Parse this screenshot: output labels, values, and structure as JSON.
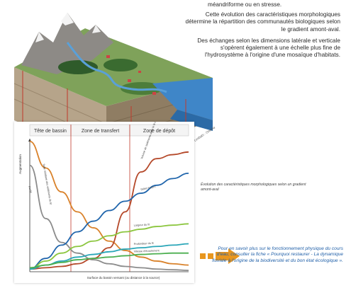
{
  "intro": "méandriforme ou en stresse.",
  "paragraph1": "Cette évolution des caractéristiques morphologiques détermine la répartition des communautés biologiques selon le gradient amont-aval.",
  "paragraph2": "Des échanges selon les dimensions latérale et verticale s'opèrent également à une échelle plus fine de l'hydrosystème à l'origine d'une mosaïque d'habitats.",
  "credit": "C. Lesbats - Onema",
  "caption": "Évolution des caractéristiques morphologiques selon un gradient amont-aval",
  "link_text": "Pour en savoir plus sur le fonctionnement physique du cours d'eau, consulter la fiche « Pourquoi restaurer - La dynamique fluviale à l'origine de la biodiversité et du bon état écologique ».",
  "colors": {
    "arrow": "#e8961e",
    "link": "#1f5fa8",
    "zone_line": "#c0392b"
  },
  "chart_data": {
    "type": "line",
    "zones": [
      "Tête de bassin",
      "Zone de transfert",
      "Zone de dépôt"
    ],
    "ylabel": "Augmentation",
    "xlabel": "Surface du bassin versant (ou distance à la source)",
    "x": [
      0,
      10,
      20,
      30,
      40,
      50,
      60,
      70,
      80,
      90,
      100
    ],
    "ylim": [
      0,
      100
    ],
    "series": [
      {
        "name": "Taille médiane des sédiments du lit",
        "color": "#d9822b",
        "values": [
          98,
          78,
          60,
          45,
          33,
          23,
          16,
          11,
          8,
          6,
          5
        ]
      },
      {
        "name": "Pente",
        "color": "#8c8c8c",
        "values": [
          80,
          40,
          22,
          14,
          9,
          6,
          4,
          3,
          2,
          1.5,
          1
        ]
      },
      {
        "name": "Volume de sédiments dans le lit majeur",
        "color": "#b5492a",
        "values": [
          2,
          3,
          4,
          6,
          10,
          18,
          45,
          75,
          85,
          88,
          90
        ]
      },
      {
        "name": "Débit moyen",
        "color": "#2166ac",
        "values": [
          2,
          10,
          20,
          30,
          38,
          46,
          53,
          59,
          65,
          70,
          74
        ]
      },
      {
        "name": "Largeur du lit",
        "color": "#8cc63f",
        "values": [
          2,
          8,
          14,
          19,
          23,
          27,
          30,
          32,
          34,
          35,
          36
        ]
      },
      {
        "name": "Profondeur du lit",
        "color": "#2aa6b8",
        "values": [
          2,
          5,
          8,
          11,
          13,
          15,
          17,
          18,
          19,
          20,
          21
        ]
      },
      {
        "name": "Vitesse d'écoulement",
        "color": "#4caf50",
        "values": [
          3,
          5,
          7,
          9,
          10,
          11,
          12,
          13,
          13.5,
          14,
          14
        ]
      }
    ]
  }
}
